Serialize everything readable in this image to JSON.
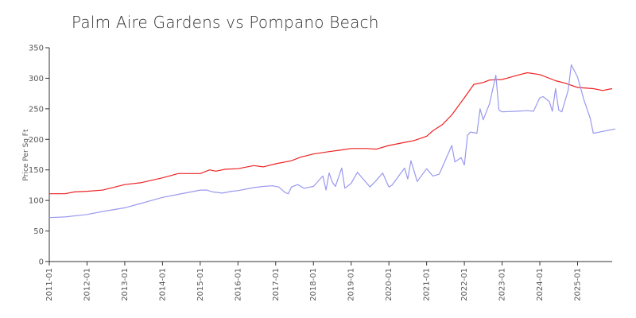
{
  "chart_data": {
    "type": "line",
    "title": "Palm Aire Gardens vs Pompano Beach",
    "ylabel": "Price Per Sq Ft",
    "xlabel": "",
    "ylim": [
      0,
      350
    ],
    "xlim": [
      "2011-01",
      "2025-12"
    ],
    "yticks": [
      0,
      50,
      100,
      150,
      200,
      250,
      300,
      350
    ],
    "xticks": [
      "2011-01",
      "2012-01",
      "2013-01",
      "2014-01",
      "2015-01",
      "2016-01",
      "2017-01",
      "2018-01",
      "2019-01",
      "2020-01",
      "2021-01",
      "2022-01",
      "2023-01",
      "2024-01",
      "2025-01"
    ],
    "grid": false,
    "legend": "none",
    "series": [
      {
        "color": "#ee2222",
        "points": [
          [
            "2011-01",
            111
          ],
          [
            "2011-06",
            111
          ],
          [
            "2011-09",
            114
          ],
          [
            "2012-01",
            115
          ],
          [
            "2012-06",
            117
          ],
          [
            "2013-01",
            126
          ],
          [
            "2013-06",
            129
          ],
          [
            "2014-01",
            137
          ],
          [
            "2014-06",
            144
          ],
          [
            "2015-01",
            144
          ],
          [
            "2015-04",
            150
          ],
          [
            "2015-06",
            148
          ],
          [
            "2015-09",
            151
          ],
          [
            "2016-01",
            152
          ],
          [
            "2016-06",
            157
          ],
          [
            "2016-09",
            155
          ],
          [
            "2017-01",
            160
          ],
          [
            "2017-06",
            165
          ],
          [
            "2017-09",
            171
          ],
          [
            "2018-01",
            176
          ],
          [
            "2018-06",
            180
          ],
          [
            "2018-09",
            182
          ],
          [
            "2019-01",
            185
          ],
          [
            "2019-06",
            185
          ],
          [
            "2019-09",
            184
          ],
          [
            "2020-01",
            190
          ],
          [
            "2020-06",
            195
          ],
          [
            "2020-09",
            198
          ],
          [
            "2021-01",
            205
          ],
          [
            "2021-03",
            214
          ],
          [
            "2021-06",
            224
          ],
          [
            "2021-09",
            240
          ],
          [
            "2022-01",
            268
          ],
          [
            "2022-04",
            290
          ],
          [
            "2022-07",
            293
          ],
          [
            "2022-09",
            297
          ],
          [
            "2023-01",
            298
          ],
          [
            "2023-06",
            305
          ],
          [
            "2023-09",
            309
          ],
          [
            "2024-01",
            306
          ],
          [
            "2024-06",
            296
          ],
          [
            "2024-09",
            292
          ],
          [
            "2025-01",
            285
          ],
          [
            "2025-06",
            283
          ],
          [
            "2025-09",
            280
          ],
          [
            "2025-12",
            283
          ]
        ]
      },
      {
        "color": "#9999ee",
        "points": [
          [
            "2011-01",
            72
          ],
          [
            "2011-06",
            73
          ],
          [
            "2012-01",
            77
          ],
          [
            "2012-06",
            82
          ],
          [
            "2013-01",
            88
          ],
          [
            "2013-06",
            95
          ],
          [
            "2014-01",
            105
          ],
          [
            "2014-06",
            110
          ],
          [
            "2015-01",
            117
          ],
          [
            "2015-03",
            117
          ],
          [
            "2015-05",
            114
          ],
          [
            "2015-08",
            112
          ],
          [
            "2015-11",
            115
          ],
          [
            "2016-01",
            116
          ],
          [
            "2016-06",
            121
          ],
          [
            "2016-09",
            123
          ],
          [
            "2016-12",
            124
          ],
          [
            "2017-02",
            122
          ],
          [
            "2017-04",
            113
          ],
          [
            "2017-05",
            111
          ],
          [
            "2017-06",
            122
          ],
          [
            "2017-08",
            126
          ],
          [
            "2017-10",
            120
          ],
          [
            "2018-01",
            123
          ],
          [
            "2018-04",
            140
          ],
          [
            "2018-05",
            117
          ],
          [
            "2018-06",
            145
          ],
          [
            "2018-07",
            130
          ],
          [
            "2018-08",
            123
          ],
          [
            "2018-10",
            153
          ],
          [
            "2018-11",
            120
          ],
          [
            "2019-01",
            128
          ],
          [
            "2019-03",
            146
          ],
          [
            "2019-05",
            134
          ],
          [
            "2019-07",
            122
          ],
          [
            "2019-09",
            133
          ],
          [
            "2019-11",
            145
          ],
          [
            "2020-01",
            122
          ],
          [
            "2020-02",
            125
          ],
          [
            "2020-06",
            153
          ],
          [
            "2020-07",
            135
          ],
          [
            "2020-08",
            165
          ],
          [
            "2020-10",
            131
          ],
          [
            "2021-01",
            152
          ],
          [
            "2021-03",
            140
          ],
          [
            "2021-05",
            143
          ],
          [
            "2021-09",
            190
          ],
          [
            "2021-10",
            163
          ],
          [
            "2021-12",
            170
          ],
          [
            "2022-01",
            158
          ],
          [
            "2022-02",
            207
          ],
          [
            "2022-03",
            212
          ],
          [
            "2022-05",
            210
          ],
          [
            "2022-06",
            250
          ],
          [
            "2022-07",
            232
          ],
          [
            "2022-09",
            258
          ],
          [
            "2022-11",
            305
          ],
          [
            "2022-12",
            248
          ],
          [
            "2023-01",
            245
          ],
          [
            "2023-06",
            246
          ],
          [
            "2023-09",
            247
          ],
          [
            "2023-11",
            246
          ],
          [
            "2024-01",
            268
          ],
          [
            "2024-02",
            270
          ],
          [
            "2024-04",
            262
          ],
          [
            "2024-05",
            246
          ],
          [
            "2024-06",
            283
          ],
          [
            "2024-07",
            248
          ],
          [
            "2024-08",
            245
          ],
          [
            "2024-10",
            280
          ],
          [
            "2024-11",
            322
          ],
          [
            "2025-01",
            302
          ],
          [
            "2025-03",
            265
          ],
          [
            "2025-05",
            235
          ],
          [
            "2025-06",
            210
          ],
          [
            "2025-09",
            213
          ],
          [
            "2026-01",
            217
          ]
        ]
      }
    ]
  }
}
